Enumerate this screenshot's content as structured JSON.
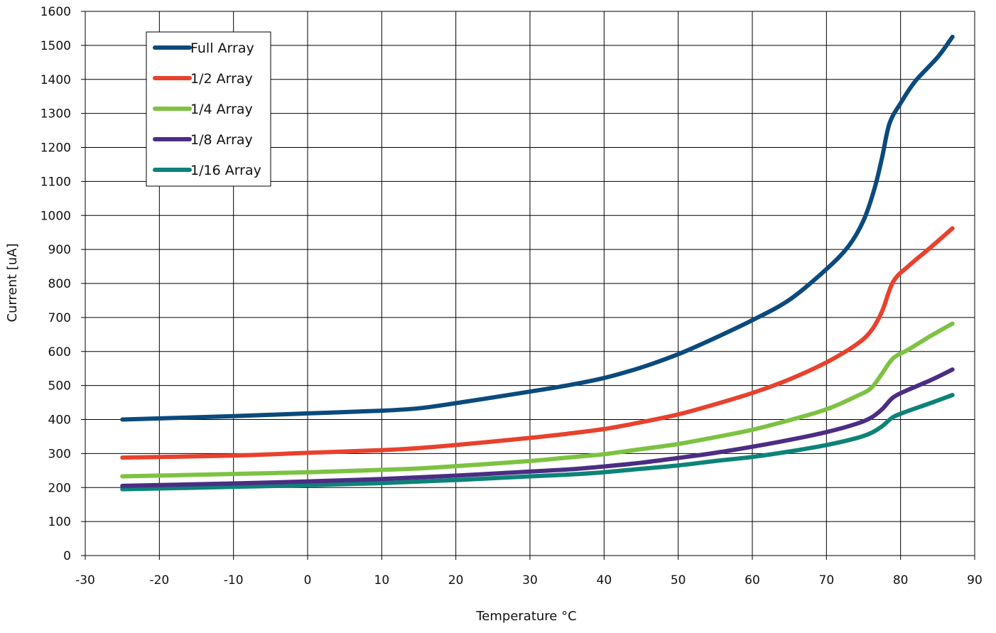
{
  "chart_data": {
    "type": "line",
    "title": "",
    "xlabel": "Temperature °C",
    "ylabel": "Current [uA]",
    "xlim": [
      -30,
      90
    ],
    "ylim": [
      0,
      1600
    ],
    "x_ticks": [
      "-30",
      "-20",
      "-10",
      "0",
      "10",
      "20",
      "30",
      "40",
      "50",
      "60",
      "70",
      "80",
      "90"
    ],
    "y_ticks": [
      "0",
      "100",
      "200",
      "300",
      "400",
      "500",
      "600",
      "700",
      "800",
      "900",
      "1000",
      "1100",
      "1200",
      "1300",
      "1400",
      "1500",
      "1600"
    ],
    "grid": true,
    "legend_position": "top-left",
    "series": [
      {
        "name": "Full Array",
        "color": "#0b4a7d",
        "points": [
          [
            -25,
            400
          ],
          [
            -10,
            410
          ],
          [
            0,
            418
          ],
          [
            10,
            426
          ],
          [
            15,
            433
          ],
          [
            20,
            448
          ],
          [
            30,
            482
          ],
          [
            35,
            500
          ],
          [
            40,
            522
          ],
          [
            45,
            553
          ],
          [
            50,
            592
          ],
          [
            55,
            640
          ],
          [
            60,
            692
          ],
          [
            65,
            752
          ],
          [
            70,
            842
          ],
          [
            73,
            910
          ],
          [
            75,
            985
          ],
          [
            76.5,
            1080
          ],
          [
            77.5,
            1170
          ],
          [
            78.5,
            1270
          ],
          [
            80,
            1330
          ],
          [
            82,
            1395
          ],
          [
            85,
            1465
          ],
          [
            87,
            1525
          ]
        ]
      },
      {
        "name": "1/2 Array",
        "color": "#e8412d",
        "points": [
          [
            -25,
            288
          ],
          [
            -10,
            294
          ],
          [
            0,
            302
          ],
          [
            10,
            310
          ],
          [
            15,
            316
          ],
          [
            20,
            325
          ],
          [
            30,
            346
          ],
          [
            35,
            358
          ],
          [
            40,
            372
          ],
          [
            45,
            392
          ],
          [
            50,
            415
          ],
          [
            55,
            445
          ],
          [
            60,
            478
          ],
          [
            65,
            518
          ],
          [
            70,
            568
          ],
          [
            74,
            620
          ],
          [
            76,
            660
          ],
          [
            77.5,
            718
          ],
          [
            79,
            805
          ],
          [
            81,
            850
          ],
          [
            84,
            905
          ],
          [
            87,
            962
          ]
        ]
      },
      {
        "name": "1/4 Array",
        "color": "#7dc242",
        "points": [
          [
            -25,
            233
          ],
          [
            -10,
            240
          ],
          [
            0,
            245
          ],
          [
            10,
            252
          ],
          [
            15,
            256
          ],
          [
            20,
            263
          ],
          [
            30,
            278
          ],
          [
            35,
            288
          ],
          [
            40,
            298
          ],
          [
            45,
            313
          ],
          [
            50,
            328
          ],
          [
            55,
            348
          ],
          [
            60,
            370
          ],
          [
            65,
            398
          ],
          [
            70,
            430
          ],
          [
            74,
            468
          ],
          [
            76,
            492
          ],
          [
            77.5,
            535
          ],
          [
            79,
            580
          ],
          [
            81,
            605
          ],
          [
            84,
            645
          ],
          [
            87,
            682
          ]
        ]
      },
      {
        "name": "1/8 Array",
        "color": "#4b2d84",
        "points": [
          [
            -25,
            205
          ],
          [
            -10,
            212
          ],
          [
            0,
            218
          ],
          [
            10,
            225
          ],
          [
            20,
            235
          ],
          [
            30,
            247
          ],
          [
            35,
            253
          ],
          [
            40,
            262
          ],
          [
            45,
            273
          ],
          [
            50,
            287
          ],
          [
            55,
            302
          ],
          [
            60,
            320
          ],
          [
            65,
            340
          ],
          [
            70,
            363
          ],
          [
            74,
            387
          ],
          [
            76,
            405
          ],
          [
            77.5,
            430
          ],
          [
            79,
            465
          ],
          [
            81,
            487
          ],
          [
            84,
            515
          ],
          [
            87,
            547
          ]
        ]
      },
      {
        "name": "1/16 Array",
        "color": "#0d8378",
        "points": [
          [
            -25,
            195
          ],
          [
            -10,
            202
          ],
          [
            0,
            207
          ],
          [
            10,
            213
          ],
          [
            20,
            222
          ],
          [
            30,
            233
          ],
          [
            35,
            238
          ],
          [
            40,
            245
          ],
          [
            45,
            255
          ],
          [
            50,
            265
          ],
          [
            55,
            278
          ],
          [
            60,
            290
          ],
          [
            65,
            306
          ],
          [
            70,
            325
          ],
          [
            74,
            345
          ],
          [
            76,
            360
          ],
          [
            77.5,
            380
          ],
          [
            79,
            407
          ],
          [
            81,
            425
          ],
          [
            84,
            448
          ],
          [
            87,
            472
          ]
        ]
      }
    ]
  }
}
